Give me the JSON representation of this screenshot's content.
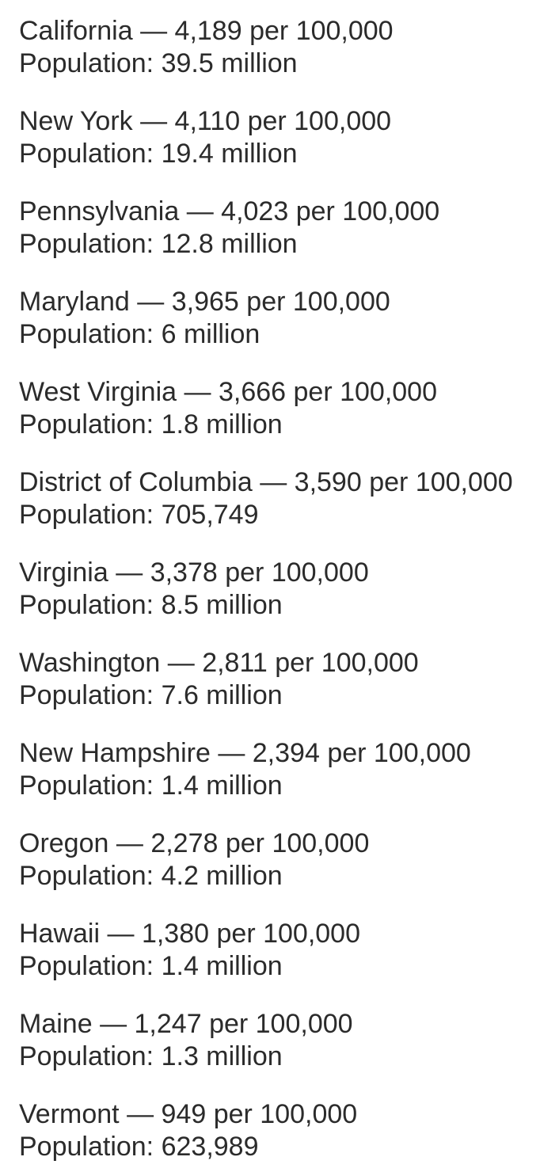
{
  "page": {
    "background_color": "#ffffff",
    "text_color": "#2b2b2b"
  },
  "labels": {
    "separator": "—",
    "rate_unit": "per 100,000",
    "population_label": "Population:"
  },
  "entries": [
    {
      "state": "California",
      "rate": "4,189",
      "population": "39.5 million"
    },
    {
      "state": "New York",
      "rate": "4,110",
      "population": "19.4 million"
    },
    {
      "state": "Pennsylvania",
      "rate": "4,023",
      "population": "12.8 million"
    },
    {
      "state": "Maryland",
      "rate": "3,965",
      "population": "6 million"
    },
    {
      "state": "West Virginia",
      "rate": "3,666",
      "population": "1.8 million"
    },
    {
      "state": "District of Columbia",
      "rate": "3,590",
      "population": "705,749"
    },
    {
      "state": "Virginia",
      "rate": "3,378",
      "population": "8.5 million"
    },
    {
      "state": "Washington",
      "rate": "2,811",
      "population": "7.6 million"
    },
    {
      "state": "New Hampshire",
      "rate": "2,394",
      "population": "1.4 million"
    },
    {
      "state": "Oregon",
      "rate": "2,278",
      "population": "4.2 million"
    },
    {
      "state": "Hawaii",
      "rate": "1,380",
      "population": "1.4 million"
    },
    {
      "state": "Maine",
      "rate": "1,247",
      "population": "1.3 million"
    },
    {
      "state": "Vermont",
      "rate": "949",
      "population": "623,989"
    }
  ]
}
